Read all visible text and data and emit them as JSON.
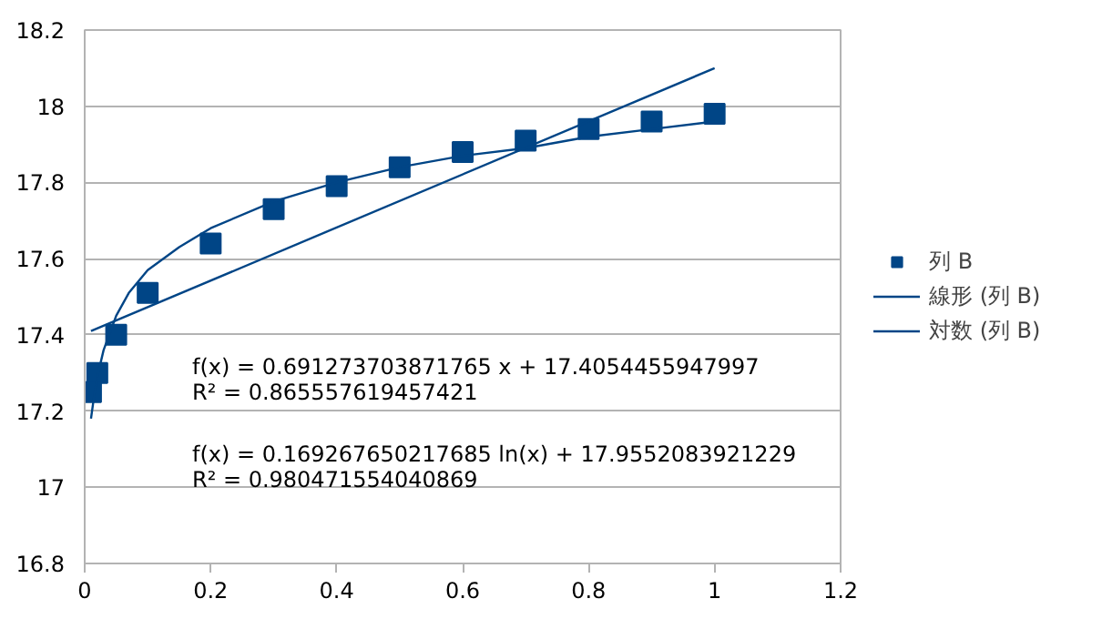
{
  "chart_data": {
    "type": "scatter",
    "grid": "y",
    "legend": "right",
    "xlim": [
      0,
      1.2
    ],
    "xticks": [
      0,
      0.2,
      0.4,
      0.6,
      0.8,
      1,
      1.2
    ],
    "ylim": [
      16.8,
      18.2
    ],
    "yticks": [
      16.8,
      17,
      17.2,
      17.4,
      17.6,
      17.8,
      18,
      18.2
    ],
    "series": [
      {
        "name": "列 B",
        "marker": "square",
        "color": "#004586",
        "x": [
          0.01,
          0.02,
          0.05,
          0.1,
          0.2,
          0.3,
          0.4,
          0.5,
          0.6,
          0.7,
          0.8,
          0.9,
          1
        ],
        "values": [
          17.25,
          17.3,
          17.4,
          17.51,
          17.64,
          17.73,
          17.79,
          17.84,
          17.88,
          17.91,
          17.94,
          17.96,
          17.98
        ]
      },
      {
        "name": "線形 (列 B)",
        "type": "line",
        "marker": "none",
        "color": "#004586",
        "x": [
          0.01,
          1
        ],
        "values": [
          17.41,
          18.1
        ]
      },
      {
        "name": "対数 (列 B)",
        "type": "line",
        "marker": "none",
        "color": "#004586",
        "x": [
          0.01,
          0.015,
          0.02,
          0.03,
          0.05,
          0.07,
          0.1,
          0.15,
          0.2,
          0.3,
          0.4,
          0.5,
          0.6,
          0.7,
          0.8,
          0.9,
          1
        ],
        "values": [
          17.18,
          17.24,
          17.29,
          17.36,
          17.45,
          17.51,
          17.57,
          17.63,
          17.68,
          17.75,
          17.8,
          17.84,
          17.87,
          17.89,
          17.92,
          17.94,
          17.96
        ]
      }
    ],
    "annotations": [
      "f(x) = 0.691273703871765 x + 17.4054455947997",
      "R² = 0.865557619457421",
      "f(x) = 0.169267650217685 ln(x) + 17.9552083921229",
      "R² = 0.980471554040869"
    ]
  }
}
